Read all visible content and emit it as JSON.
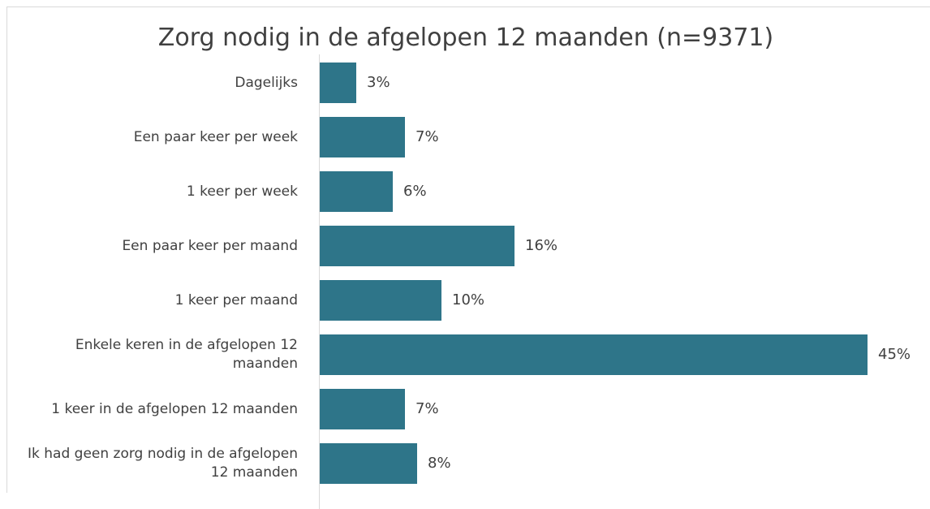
{
  "chart_data": {
    "type": "bar",
    "orientation": "horizontal",
    "title": "Zorg nodig in de afgelopen 12 maanden (n=9371)",
    "categories": [
      "Dagelijks",
      "Een paar keer per week",
      "1 keer per week",
      "Een paar keer per maand",
      "1 keer per maand",
      "Enkele keren in de afgelopen 12 maanden",
      "1 keer in de afgelopen 12 maanden",
      "Ik had geen zorg nodig in de afgelopen 12 maanden"
    ],
    "values": [
      3,
      7,
      6,
      16,
      10,
      45,
      7,
      8
    ],
    "value_labels": [
      "3%",
      "7%",
      "6%",
      "16%",
      "10%",
      "45%",
      "7%",
      "8%"
    ],
    "color": "#2e7589"
  }
}
